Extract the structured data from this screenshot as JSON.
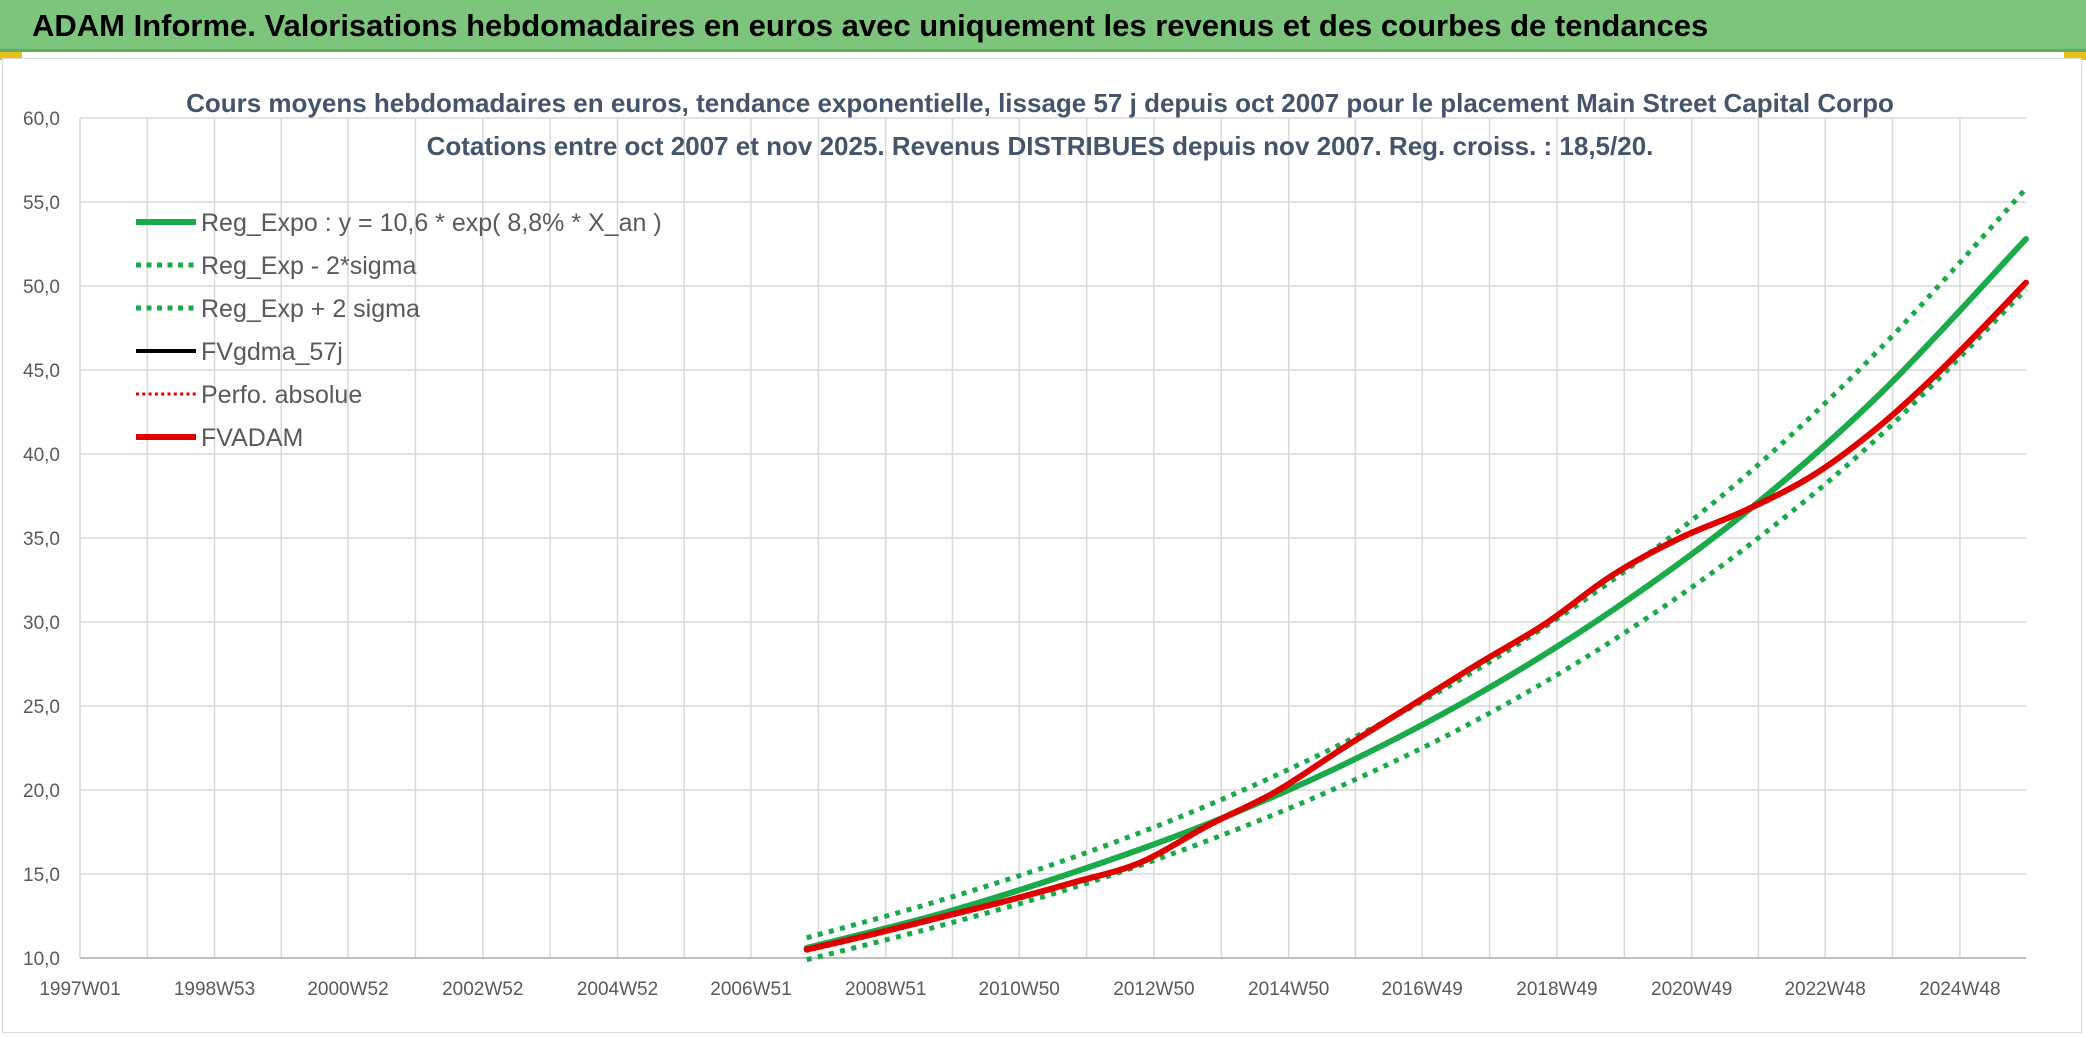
{
  "banner": {
    "title": "ADAM Informe. Valorisations hebdomadaires en euros avec uniquement les revenus et des courbes de tendances",
    "background": "#7dc57d"
  },
  "chart_data": {
    "type": "line",
    "title": "Cours moyens hebdomadaires en euros, tendance exponentielle, lissage 57 j depuis oct 2007 pour le placement Main Street Capital Corpo",
    "subtitle": "Cotations entre oct 2007 et nov 2025. Revenus DISTRIBUES depuis nov 2007. Reg. croiss. : 18,5/20.",
    "xlabel": "",
    "ylabel": "",
    "x_range": [
      "1997W01",
      "2025W47"
    ],
    "x_ticks": [
      "1997W01",
      "1998W53",
      "2000W52",
      "2002W52",
      "2004W52",
      "2006W51",
      "2008W51",
      "2010W50",
      "2012W50",
      "2014W50",
      "2016W49",
      "2018W49",
      "2020W49",
      "2022W48",
      "2024W48"
    ],
    "ylim": [
      10,
      60
    ],
    "y_ticks": [
      "10,0",
      "15,0",
      "20,0",
      "25,0",
      "30,0",
      "35,0",
      "40,0",
      "45,0",
      "50,0",
      "55,0",
      "60,0"
    ],
    "grid": true,
    "legend_position": "top-left",
    "series": [
      {
        "name": "Reg_Expo : y = 10,6 * exp( 8,8% *  X_an )",
        "color": "#1aaa4a",
        "style": "solid",
        "width": 6,
        "x": [
          "2007W42",
          "2009W40",
          "2011W40",
          "2013W40",
          "2015W40",
          "2017W40",
          "2019W40",
          "2021W40",
          "2023W40",
          "2025W47"
        ],
        "y": [
          10.6,
          12.6,
          15.1,
          18.0,
          21.5,
          25.7,
          30.7,
          36.6,
          43.7,
          52.8
        ]
      },
      {
        "name": "Reg_Exp - 2*sigma",
        "color": "#1aaa4a",
        "style": "dotted",
        "width": 5,
        "x": [
          "2007W42",
          "2009W40",
          "2011W40",
          "2013W40",
          "2015W40",
          "2017W40",
          "2019W40",
          "2021W40",
          "2023W40",
          "2025W47"
        ],
        "y": [
          9.9,
          11.9,
          14.2,
          17.0,
          20.3,
          24.2,
          28.9,
          34.5,
          41.2,
          49.8
        ]
      },
      {
        "name": "Reg_Exp + 2 sigma",
        "color": "#1aaa4a",
        "style": "dotted",
        "width": 5,
        "x": [
          "2007W42",
          "2009W40",
          "2011W40",
          "2013W40",
          "2015W40",
          "2017W40",
          "2019W40",
          "2021W40",
          "2023W40",
          "2025W47"
        ],
        "y": [
          11.2,
          13.4,
          16.0,
          19.1,
          22.8,
          27.2,
          32.5,
          38.8,
          46.4,
          55.8
        ]
      },
      {
        "name": "FVgdma_57j",
        "color": "#000000",
        "style": "solid",
        "width": 4,
        "x": [
          "2007W42",
          "2008W40",
          "2009W40",
          "2010W40",
          "2011W40",
          "2012W40",
          "2013W40",
          "2014W40",
          "2015W40",
          "2016W40",
          "2017W40",
          "2018W40",
          "2019W40",
          "2020W40",
          "2021W40",
          "2022W40",
          "2023W40",
          "2024W40",
          "2025W47"
        ],
        "y": [
          10.5,
          11.4,
          12.4,
          13.4,
          14.5,
          15.7,
          17.9,
          19.9,
          22.5,
          25.0,
          27.5,
          29.9,
          32.8,
          35.0,
          36.7,
          38.8,
          41.8,
          45.5,
          50.2
        ]
      },
      {
        "name": "Perfo. absolue",
        "color": "#e00000",
        "style": "dotted",
        "width": 3,
        "x": [
          "2007W42",
          "2008W40",
          "2009W40",
          "2010W40",
          "2011W40",
          "2012W40",
          "2013W40",
          "2014W40",
          "2015W40",
          "2016W40",
          "2017W40",
          "2018W40",
          "2019W40",
          "2020W40",
          "2021W40",
          "2022W40",
          "2023W40",
          "2024W40",
          "2025W47"
        ],
        "y": [
          10.4,
          11.3,
          12.3,
          13.3,
          14.4,
          15.6,
          17.8,
          19.8,
          22.4,
          24.9,
          27.4,
          29.8,
          32.7,
          34.9,
          36.6,
          38.7,
          41.7,
          45.4,
          50.1
        ]
      },
      {
        "name": "FVADAM",
        "color": "#e00000",
        "style": "solid",
        "width": 6,
        "x": [
          "2007W42",
          "2008W40",
          "2009W40",
          "2010W40",
          "2011W40",
          "2012W40",
          "2013W40",
          "2014W40",
          "2015W40",
          "2016W40",
          "2017W40",
          "2018W40",
          "2019W40",
          "2020W40",
          "2021W40",
          "2022W40",
          "2023W40",
          "2024W40",
          "2025W47"
        ],
        "y": [
          10.5,
          11.4,
          12.4,
          13.4,
          14.5,
          15.7,
          17.9,
          19.9,
          22.5,
          25.0,
          27.5,
          29.9,
          32.8,
          35.0,
          36.7,
          38.8,
          41.8,
          45.5,
          50.2
        ]
      }
    ]
  }
}
